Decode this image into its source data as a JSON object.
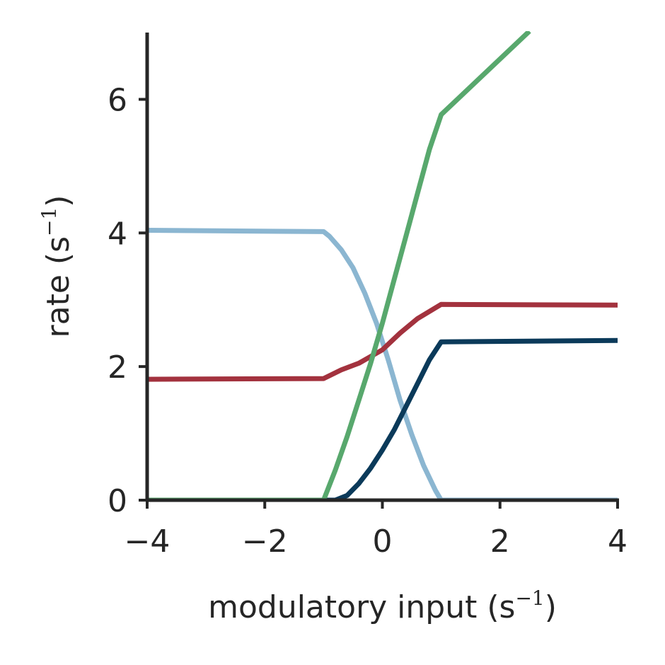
{
  "chart_data": {
    "type": "line",
    "title": "",
    "xlabel": "modulatory input (s",
    "xlabel_sup": "−1",
    "xlabel_close": ")",
    "ylabel": "rate (s",
    "ylabel_sup": "−1",
    "ylabel_close": ")",
    "xlim": [
      -4,
      4
    ],
    "ylim": [
      0,
      7
    ],
    "xticks": [
      -4,
      -2,
      0,
      2,
      4
    ],
    "xtick_labels": [
      "−4",
      "−2",
      "0",
      "2",
      "4"
    ],
    "yticks": [
      0,
      2,
      4,
      6
    ],
    "ytick_labels": [
      "0",
      "2",
      "4",
      "6"
    ],
    "grid": false,
    "series": [
      {
        "color": "#8bb6d1",
        "points": [
          [
            -4,
            4.04
          ],
          [
            -1,
            4.02
          ],
          [
            -0.9,
            3.95
          ],
          [
            -0.7,
            3.75
          ],
          [
            -0.5,
            3.48
          ],
          [
            -0.3,
            3.1
          ],
          [
            -0.1,
            2.65
          ],
          [
            0.1,
            2.1
          ],
          [
            0.3,
            1.5
          ],
          [
            0.5,
            0.98
          ],
          [
            0.7,
            0.52
          ],
          [
            0.9,
            0.15
          ],
          [
            1.0,
            0.0
          ],
          [
            4,
            0.0
          ]
        ]
      },
      {
        "color": "#a3323e",
        "points": [
          [
            -4,
            1.81
          ],
          [
            -1,
            1.82
          ],
          [
            -0.7,
            1.95
          ],
          [
            -0.4,
            2.05
          ],
          [
            0,
            2.25
          ],
          [
            0.3,
            2.5
          ],
          [
            0.6,
            2.72
          ],
          [
            1.0,
            2.93
          ],
          [
            4,
            2.92
          ]
        ]
      },
      {
        "color": "#0b3a5a",
        "points": [
          [
            -4,
            0.0
          ],
          [
            -0.8,
            0.0
          ],
          [
            -0.6,
            0.07
          ],
          [
            -0.4,
            0.25
          ],
          [
            -0.2,
            0.48
          ],
          [
            0,
            0.75
          ],
          [
            0.2,
            1.05
          ],
          [
            0.4,
            1.4
          ],
          [
            0.6,
            1.75
          ],
          [
            0.8,
            2.1
          ],
          [
            1.0,
            2.37
          ],
          [
            4,
            2.39
          ]
        ]
      },
      {
        "color": "#58a86d",
        "points": [
          [
            -4,
            0.0
          ],
          [
            -1.0,
            0.0
          ],
          [
            -0.8,
            0.45
          ],
          [
            -0.6,
            0.95
          ],
          [
            -0.4,
            1.5
          ],
          [
            -0.2,
            2.05
          ],
          [
            0,
            2.65
          ],
          [
            0.2,
            3.3
          ],
          [
            0.4,
            3.95
          ],
          [
            0.6,
            4.6
          ],
          [
            0.8,
            5.25
          ],
          [
            1.0,
            5.77
          ],
          [
            2.5,
            7.02
          ]
        ]
      }
    ]
  }
}
